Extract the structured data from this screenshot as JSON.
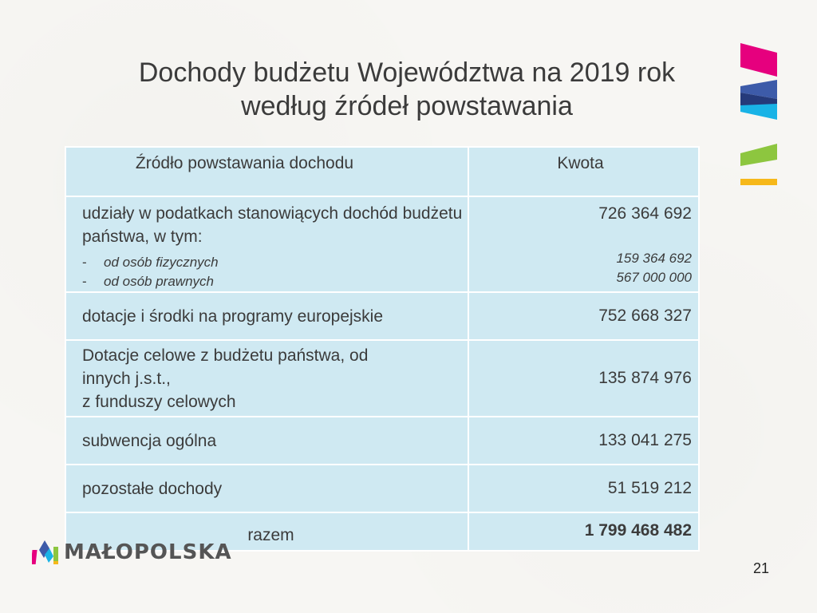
{
  "title": {
    "line1": "Dochody budżetu Województwa na 2019 rok",
    "line2": "według źródeł powstawania"
  },
  "table": {
    "headers": {
      "source": "Źródło powstawania dochodu",
      "amount": "Kwota"
    },
    "rows": [
      {
        "source": "udziały w podatkach stanowiących dochód budżetu państwa, w tym:",
        "amount": "726 364 692",
        "subitems": [
          {
            "label": "od osób fizycznych",
            "amount": "159 364 692"
          },
          {
            "label": "od osób prawnych",
            "amount": "567 000 000"
          }
        ]
      },
      {
        "source": "dotacje i środki na programy europejskie",
        "amount": "752 668 327"
      },
      {
        "source_lines": [
          "Dotacje celowe z budżetu państwa, od",
          "innych j.s.t.,",
          "z funduszy celowych"
        ],
        "amount": "135 874 976"
      },
      {
        "source": "subwencja ogólna",
        "amount": "133 041 275"
      },
      {
        "source": "pozostałe dochody",
        "amount": "51 519 212"
      }
    ],
    "total": {
      "label": "razem",
      "amount": "1 799 468 482"
    }
  },
  "logo": {
    "text": "MAŁOPOLSKA"
  },
  "page_number": "21",
  "colors": {
    "table_fill": "#cfe9f2",
    "deco_magenta": "#e6007e",
    "deco_blue": "#3d5ba9",
    "deco_dark_blue": "#253a7a",
    "deco_cyan": "#19b3e6",
    "deco_green": "#8dc63f",
    "deco_yellow": "#f6b81a"
  }
}
